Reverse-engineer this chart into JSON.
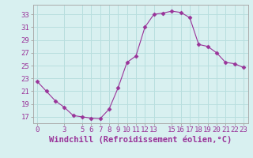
{
  "x": [
    0,
    1,
    2,
    3,
    4,
    5,
    6,
    7,
    8,
    9,
    10,
    11,
    12,
    13,
    14,
    15,
    16,
    17,
    18,
    19,
    20,
    21,
    22,
    23
  ],
  "y": [
    22.5,
    21.0,
    19.5,
    18.5,
    17.2,
    17.0,
    16.8,
    16.7,
    18.2,
    21.5,
    25.5,
    26.5,
    31.0,
    33.0,
    33.2,
    33.5,
    33.3,
    32.5,
    28.3,
    28.0,
    27.0,
    25.5,
    25.3,
    24.7
  ],
  "line_color": "#993399",
  "marker": "D",
  "marker_size": 2.5,
  "bg_color": "#d8f0f0",
  "grid_color": "#b8dede",
  "xlabel": "Windchill (Refroidissement éolien,°C)",
  "ylabel": "",
  "ylim": [
    16.0,
    34.5
  ],
  "xlim": [
    -0.5,
    23.5
  ],
  "yticks": [
    17,
    19,
    21,
    23,
    25,
    27,
    29,
    31,
    33
  ],
  "xticks": [
    0,
    3,
    5,
    6,
    7,
    8,
    9,
    10,
    11,
    12,
    13,
    15,
    16,
    17,
    18,
    19,
    20,
    21,
    22,
    23
  ],
  "tick_color": "#993399",
  "axis_color": "#aaaaaa",
  "xlabel_fontsize": 7.5,
  "tick_fontsize": 6.5
}
